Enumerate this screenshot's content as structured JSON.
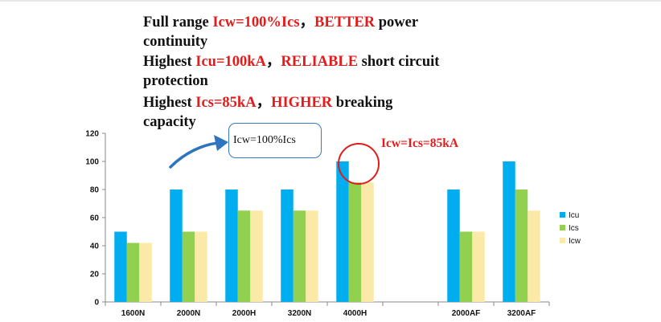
{
  "headlines": [
    {
      "line1": [
        {
          "t": "Full range ",
          "red": false
        },
        {
          "t": "Icw=100%Ics",
          "red": true
        },
        {
          "t": "，",
          "red": false
        },
        {
          "t": "BETTER",
          "red": true
        },
        {
          "t": " power",
          "red": false
        }
      ],
      "line2": "continuity"
    },
    {
      "line1": [
        {
          "t": "Highest ",
          "red": false
        },
        {
          "t": "Icu=100kA",
          "red": true
        },
        {
          "t": "，",
          "red": false
        },
        {
          "t": "RELIABLE",
          "red": true
        },
        {
          "t": " short circuit",
          "red": false
        }
      ],
      "line2": "protection"
    },
    {
      "line1": [
        {
          "t": "Highest ",
          "red": false
        },
        {
          "t": "Ics=85kA",
          "red": true
        },
        {
          "t": "，",
          "red": false
        },
        {
          "t": "HIGHER",
          "red": true
        },
        {
          "t": " breaking",
          "red": false
        }
      ],
      "line2": "capacity"
    }
  ],
  "callout": {
    "text": "Icw=100%Ics"
  },
  "annotation": {
    "text": "Icw=Ics=85kA"
  },
  "colors": {
    "icu": "#00aeef",
    "ics": "#92d050",
    "icw": "#fbe9a7",
    "accent": "#e31b1b",
    "arrow": "#2e74c0"
  },
  "chart_data": {
    "type": "bar",
    "categories": [
      "1600N",
      "2000N",
      "2000H",
      "3200N",
      "4000H",
      "",
      "2000AF",
      "3200AF"
    ],
    "series": [
      {
        "name": "Icu",
        "values": [
          50,
          80,
          80,
          80,
          100,
          null,
          80,
          100
        ]
      },
      {
        "name": "Ics",
        "values": [
          42,
          50,
          65,
          65,
          85,
          null,
          50,
          80
        ]
      },
      {
        "name": "Icw",
        "values": [
          42,
          50,
          65,
          65,
          85,
          null,
          50,
          65
        ]
      }
    ],
    "ylim": [
      0,
      120
    ],
    "yticks": [
      0,
      20,
      40,
      60,
      80,
      100,
      120
    ],
    "grid": false,
    "legend": "right"
  }
}
